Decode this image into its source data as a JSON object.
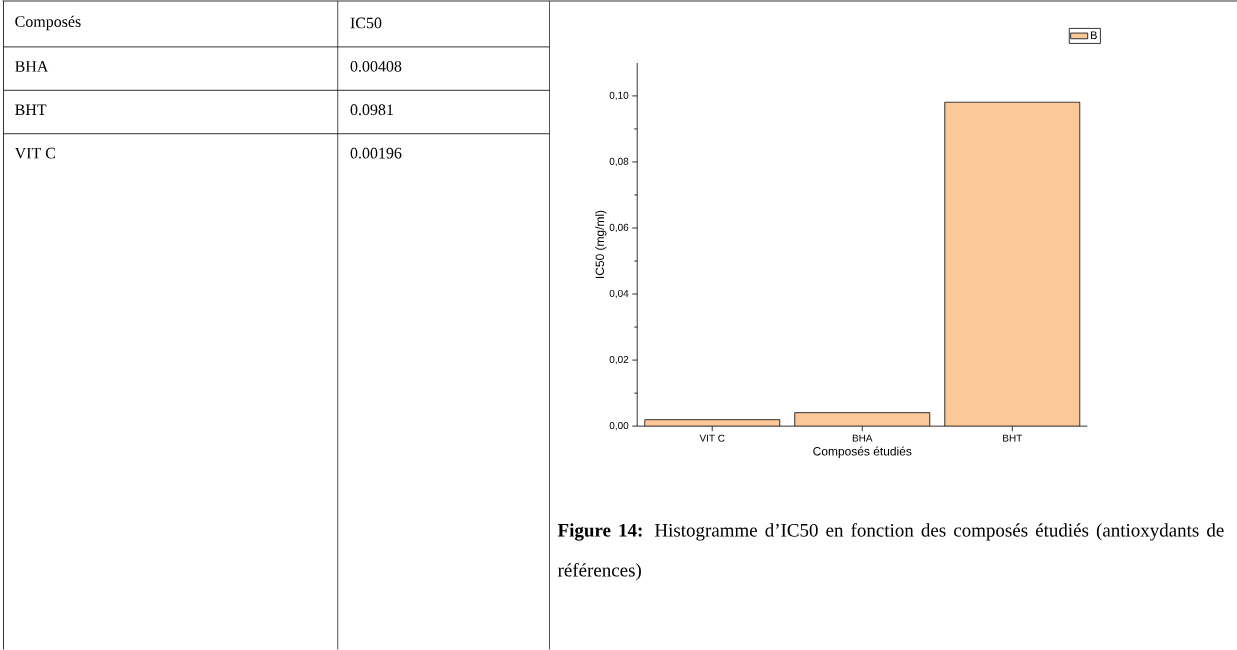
{
  "chart_data": {
    "type": "bar",
    "categories": [
      "VIT C",
      "BHA",
      "BHT"
    ],
    "series": [
      {
        "name": "B",
        "color": "#fbc898",
        "values": [
          0.00196,
          0.00408,
          0.0981
        ]
      }
    ],
    "xlabel": "Composés étudiés",
    "ylabel": "IC50 (mg/ml)",
    "ylim": [
      0,
      0.11
    ],
    "yticks": [
      {
        "value": 0,
        "label": "0,00"
      },
      {
        "value": 0.02,
        "label": "0,02"
      },
      {
        "value": 0.04,
        "label": "0,04"
      },
      {
        "value": 0.06,
        "label": "0,06"
      },
      {
        "value": 0.08,
        "label": "0,08"
      },
      {
        "value": 0.1,
        "label": "0,10"
      }
    ],
    "legend": "top right",
    "annotations": [
      "Composés",
      "IC50",
      "BHA",
      "0.00408",
      "BHT",
      "0.0981",
      "VIT C",
      "0.00196",
      "**Figure 14:** Histogramme d’IC50 en fonction des composés étudiés (antioxydants de références)"
    ]
  }
}
